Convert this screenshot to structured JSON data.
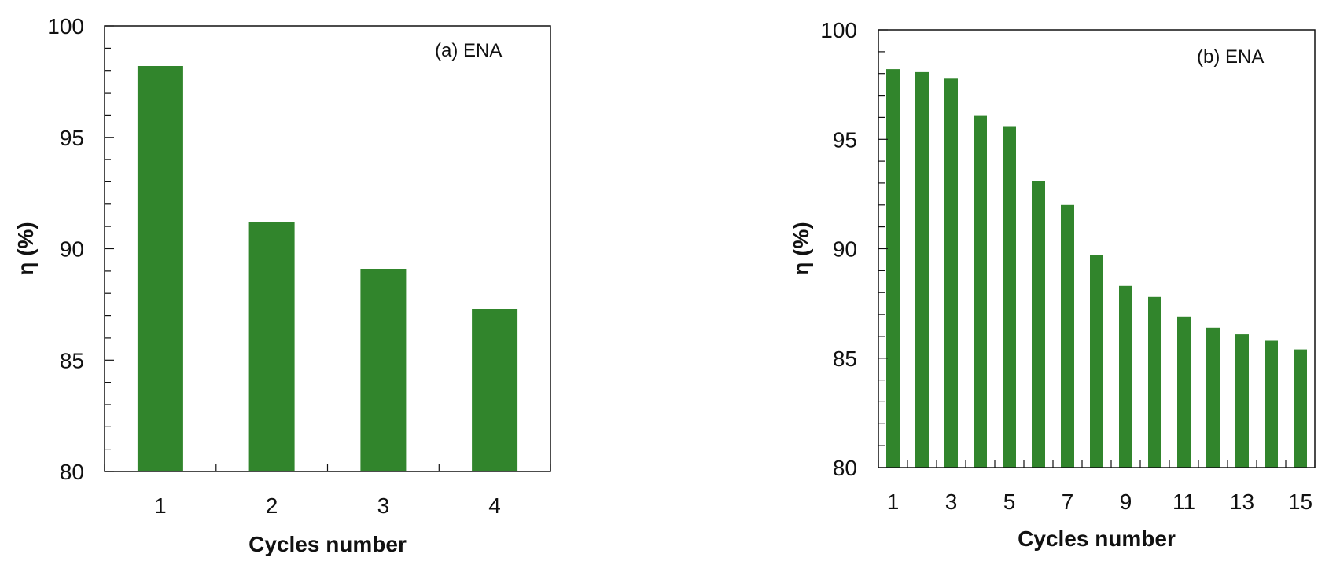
{
  "chart_data": [
    {
      "type": "bar",
      "annotation": "(a) ENA",
      "categories": [
        "1",
        "2",
        "3",
        "4"
      ],
      "x_tick_labels": [
        "1",
        "2",
        "3",
        "4"
      ],
      "values": [
        98.2,
        91.2,
        89.1,
        87.3
      ],
      "xlabel": "Cycles number",
      "ylabel": "η (%)",
      "ylim": [
        80,
        100
      ],
      "y_ticks": [
        80,
        85,
        90,
        95,
        100
      ],
      "grid": false,
      "bar_color": "#31852c"
    },
    {
      "type": "bar",
      "annotation": "(b) ENA",
      "categories": [
        "1",
        "2",
        "3",
        "4",
        "5",
        "6",
        "7",
        "8",
        "9",
        "10",
        "11",
        "12",
        "13",
        "14",
        "15"
      ],
      "x_tick_labels": [
        "1",
        "3",
        "5",
        "7",
        "9",
        "11",
        "13",
        "15"
      ],
      "values": [
        98.2,
        98.1,
        97.8,
        96.1,
        95.6,
        93.1,
        92.0,
        89.7,
        88.3,
        87.8,
        86.9,
        86.4,
        86.1,
        85.8,
        85.4
      ],
      "xlabel": "Cycles number",
      "ylabel": "η (%)",
      "ylim": [
        80,
        100
      ],
      "y_ticks": [
        80,
        85,
        90,
        95,
        100
      ],
      "grid": false,
      "bar_color": "#31852c"
    }
  ]
}
